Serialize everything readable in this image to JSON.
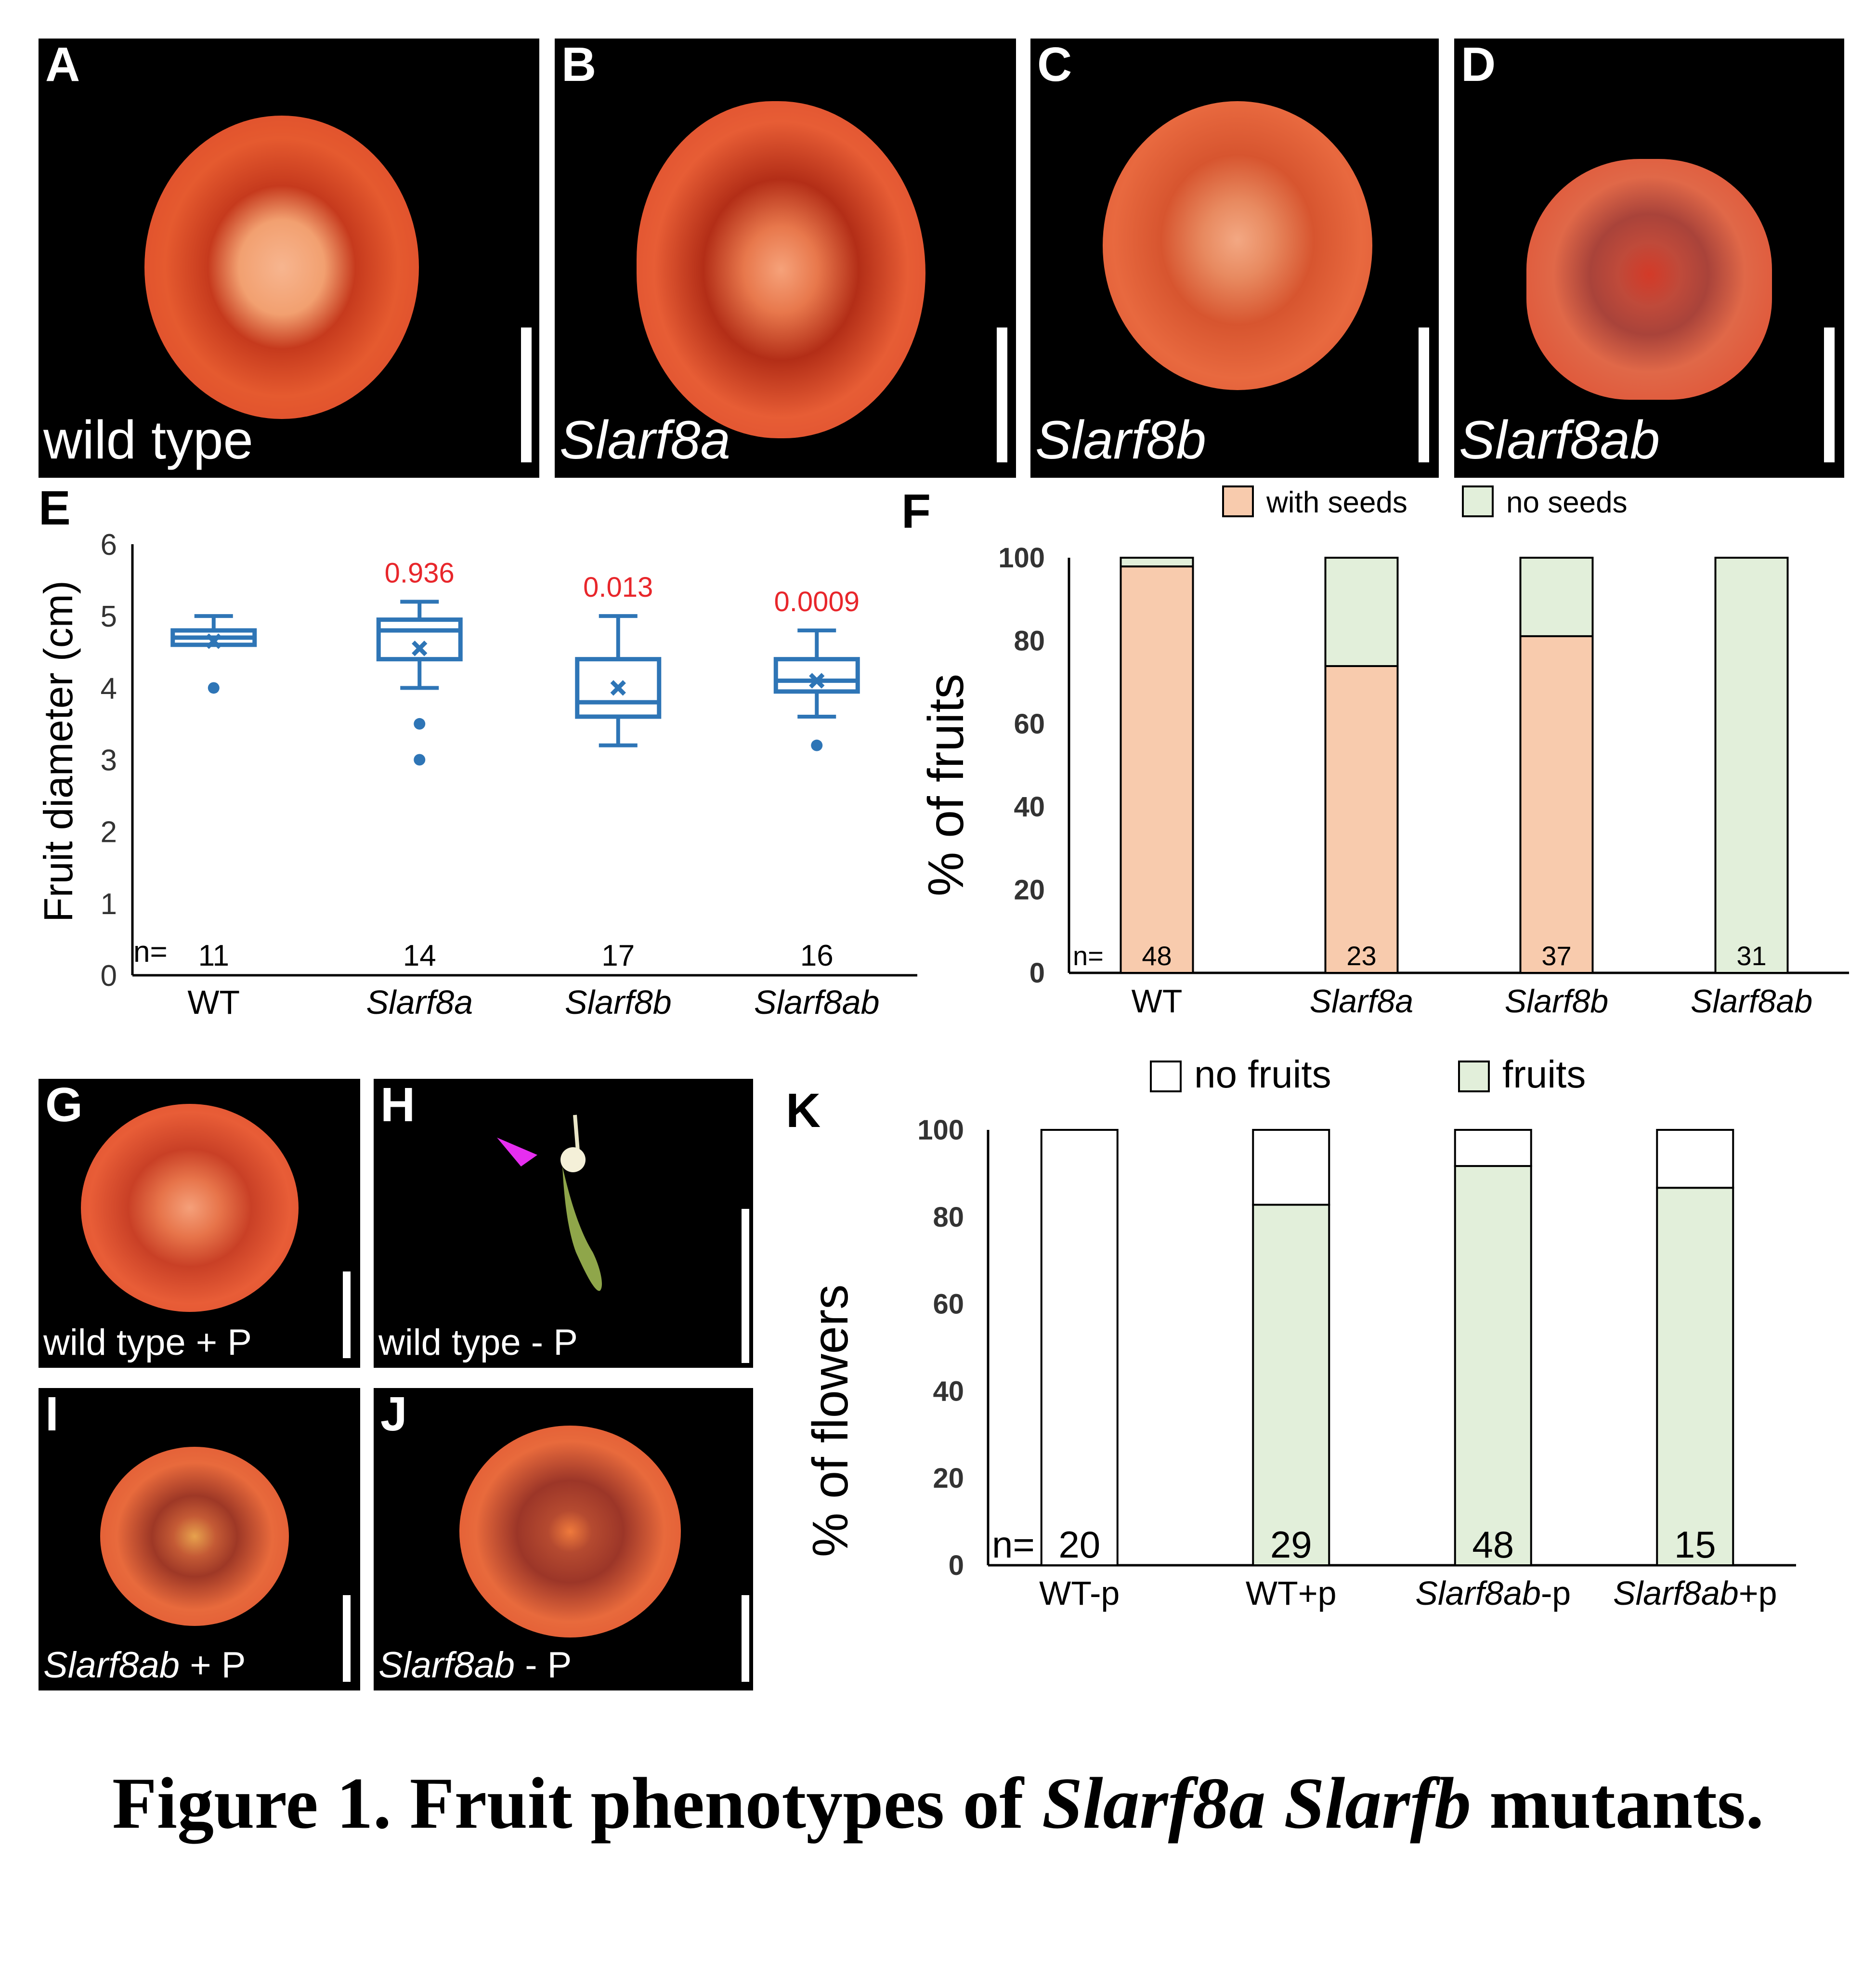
{
  "panels_top": [
    {
      "letter": "A",
      "caption": "wild type",
      "italic": false
    },
    {
      "letter": "B",
      "caption": "Slarf8a",
      "italic": true
    },
    {
      "letter": "C",
      "caption": "Slarf8b",
      "italic": true
    },
    {
      "letter": "D",
      "caption": "Slarf8ab",
      "italic": true
    }
  ],
  "panels_bottom": [
    {
      "letter": "G",
      "caption_italic": "",
      "caption_plain": "wild type + P"
    },
    {
      "letter": "H",
      "caption_italic": "",
      "caption_plain": "wild type - P"
    },
    {
      "letter": "I",
      "caption_italic": "Slarf8ab",
      "caption_plain": " + P"
    },
    {
      "letter": "J",
      "caption_italic": "Slarf8ab",
      "caption_plain": " - P"
    }
  ],
  "panel_letters": {
    "E": "E",
    "F": "F",
    "K": "K"
  },
  "caption": {
    "prefix": "Figure 1. Fruit phenotypes of ",
    "italic": "Slarf8a Slarfb",
    "suffix": " mutants."
  },
  "chart_data": [
    {
      "panel": "E",
      "type": "box",
      "ylabel": "Fruit diameter (cm)",
      "ylim": [
        0,
        6
      ],
      "yticks": [
        0,
        1,
        2,
        3,
        4,
        5,
        6
      ],
      "n_prefix": "n=",
      "categories": [
        "WT",
        "Slarf8a",
        "Slarf8b",
        "Slarf8ab"
      ],
      "italic_categories": [
        false,
        true,
        true,
        true
      ],
      "n": [
        "11",
        "14",
        "17",
        "16"
      ],
      "p_values": [
        "",
        "0.936",
        "0.013",
        "0.0009"
      ],
      "boxes": [
        {
          "min": 4.6,
          "q1": 4.6,
          "median": 4.7,
          "q3": 4.8,
          "max": 5.0,
          "mean": 4.65,
          "outliers": [
            4.0
          ]
        },
        {
          "min": 4.0,
          "q1": 4.4,
          "median": 4.8,
          "q3": 4.95,
          "max": 5.2,
          "mean": 4.55,
          "outliers": [
            3.5,
            3.0
          ]
        },
        {
          "min": 3.2,
          "q1": 3.6,
          "median": 3.8,
          "q3": 4.4,
          "max": 5.0,
          "mean": 4.0,
          "outliers": []
        },
        {
          "min": 3.6,
          "q1": 3.95,
          "median": 4.1,
          "q3": 4.4,
          "max": 4.8,
          "mean": 4.1,
          "outliers": [
            3.2
          ]
        }
      ],
      "colors": {
        "box": "#2e75b6",
        "pvalue": "#e8262b"
      }
    },
    {
      "panel": "F",
      "type": "bar",
      "stacked": true,
      "ylabel": "% of fruits",
      "ylim": [
        0,
        100
      ],
      "yticks": [
        0,
        20,
        40,
        60,
        80,
        100
      ],
      "n_prefix": "n=",
      "categories": [
        "WT",
        "Slarf8a",
        "Slarf8b",
        "Slarf8ab"
      ],
      "italic_categories": [
        false,
        true,
        true,
        true
      ],
      "n": [
        "48",
        "23",
        "37",
        "31"
      ],
      "series": [
        {
          "name": "with seeds",
          "values": [
            97.9,
            73.9,
            81.1,
            0
          ],
          "color": "#f8cbad"
        },
        {
          "name": "no seeds",
          "values": [
            2.1,
            26.1,
            18.9,
            100
          ],
          "color": "#e2efda"
        }
      ],
      "legend": "top"
    },
    {
      "panel": "K",
      "type": "bar",
      "stacked": true,
      "ylabel": "% of flowers",
      "ylim": [
        0,
        100
      ],
      "yticks": [
        0,
        20,
        40,
        60,
        80,
        100
      ],
      "n_prefix": "n=",
      "categories": [
        "WT-p",
        "WT+p",
        "Slarf8ab-p",
        "Slarf8ab+p"
      ],
      "category_parts": [
        [
          "",
          "WT-p"
        ],
        [
          "",
          "WT+p"
        ],
        [
          "Slarf8ab",
          "-p"
        ],
        [
          "Slarf8ab",
          "+p"
        ]
      ],
      "n": [
        "20",
        "29",
        "48",
        "15"
      ],
      "series": [
        {
          "name": "fruits",
          "values": [
            0,
            82.8,
            91.7,
            86.7
          ],
          "color": "#e2efda"
        },
        {
          "name": "no fruits",
          "values": [
            100,
            17.2,
            8.3,
            13.3
          ],
          "color": "#ffffff"
        }
      ],
      "legend": "top"
    }
  ]
}
